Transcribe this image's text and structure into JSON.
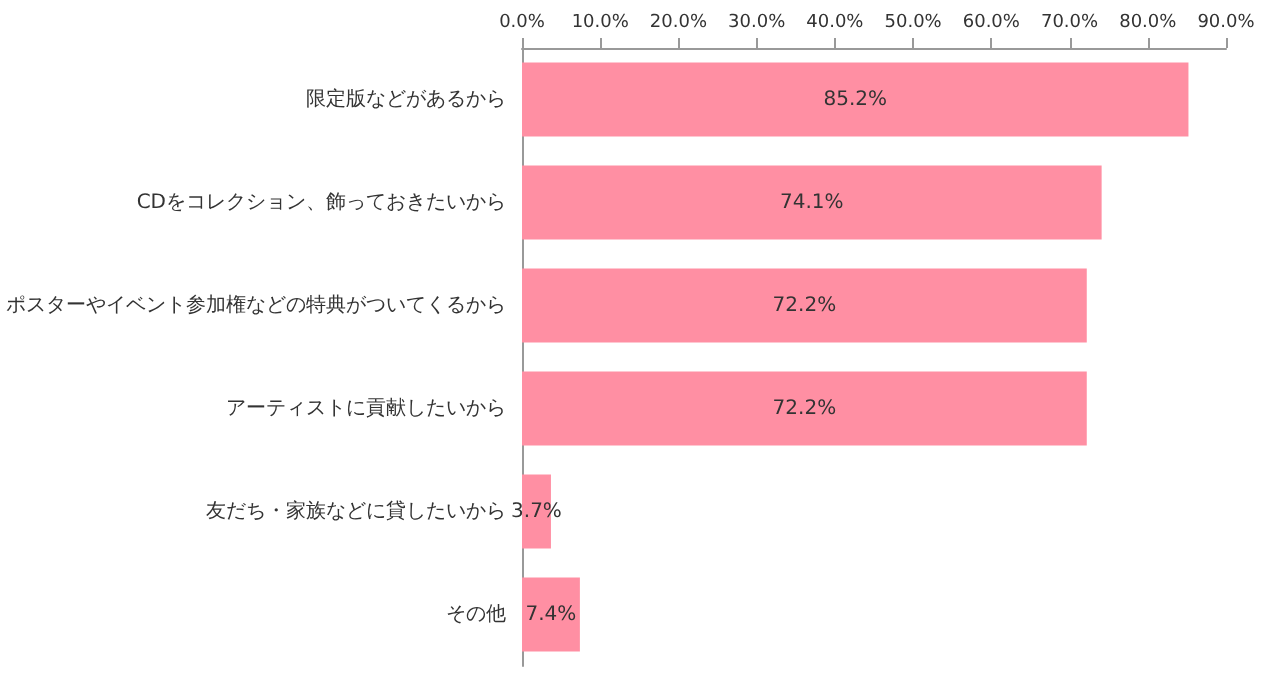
{
  "chart_data": {
    "type": "bar",
    "orientation": "horizontal",
    "categories": [
      "限定版などがあるから",
      "CDをコレクション、飾っておきたいから",
      "ポスターやイベント参加権などの特典がついてくるから",
      "アーティストに貢献したいから",
      "友だち・家族などに貸したいから",
      "その他"
    ],
    "values": [
      85.2,
      74.1,
      72.2,
      72.2,
      3.7,
      7.4
    ],
    "value_labels": [
      "85.2%",
      "74.1%",
      "72.2%",
      "72.2%",
      "3.7%",
      "7.4%"
    ],
    "color": "#ff8fa3",
    "xlim": [
      0,
      90
    ],
    "xticks": [
      {
        "value": 0,
        "label": "0.0%"
      },
      {
        "value": 10,
        "label": "10.0%"
      },
      {
        "value": 20,
        "label": "20.0%"
      },
      {
        "value": 30,
        "label": "30.0%"
      },
      {
        "value": 40,
        "label": "40.0%"
      },
      {
        "value": 50,
        "label": "50.0%"
      },
      {
        "value": 60,
        "label": "60.0%"
      },
      {
        "value": 70,
        "label": "70.0%"
      },
      {
        "value": 80,
        "label": "80.0%"
      },
      {
        "value": 90,
        "label": "90.0%"
      }
    ],
    "grid": false
  }
}
